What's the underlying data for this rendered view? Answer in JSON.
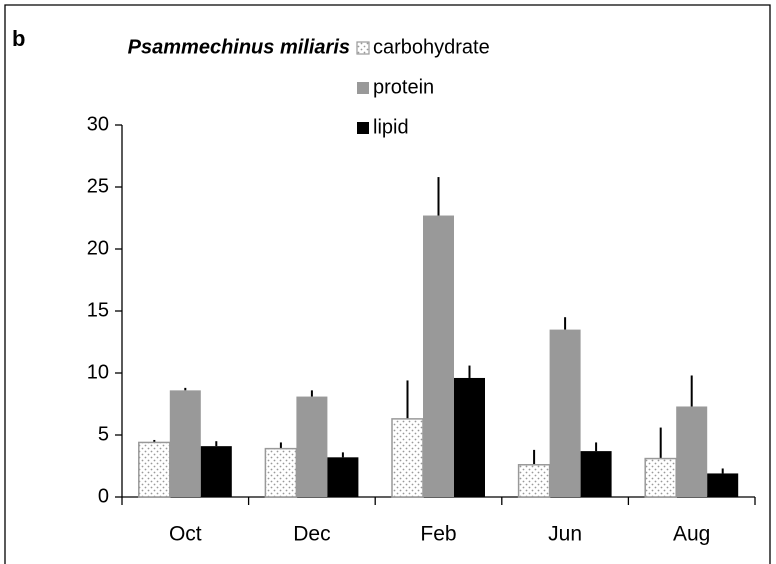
{
  "chart_data": {
    "type": "bar",
    "panel_label": "b",
    "legend_title": "Psammechinus miliaris",
    "categories": [
      "Oct",
      "Dec",
      "Feb",
      "Jun",
      "Aug"
    ],
    "series": [
      {
        "name": "carbohydrate",
        "color": "#ffffff",
        "pattern": "dots",
        "values": [
          4.4,
          3.9,
          6.3,
          2.6,
          3.1
        ],
        "errors": [
          0.2,
          0.5,
          3.1,
          1.2,
          2.5
        ]
      },
      {
        "name": "protein",
        "color": "#999999",
        "values": [
          8.6,
          8.1,
          22.7,
          13.5,
          7.3
        ],
        "errors": [
          0.2,
          0.5,
          3.1,
          1.0,
          2.5
        ]
      },
      {
        "name": "lipid",
        "color": "#000000",
        "values": [
          4.1,
          3.2,
          9.6,
          3.7,
          1.9
        ],
        "errors": [
          0.4,
          0.4,
          1.0,
          0.7,
          0.4
        ]
      }
    ],
    "ylim": [
      0,
      30
    ],
    "yticks": [
      0,
      5,
      10,
      15,
      20,
      25,
      30
    ],
    "grid": false,
    "legend": "top-right"
  }
}
